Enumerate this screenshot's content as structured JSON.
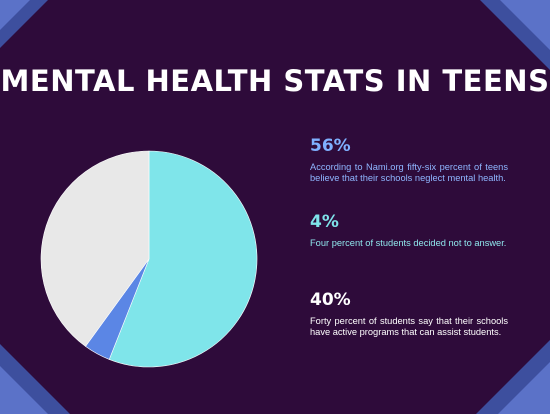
{
  "title": "MENTAL HEALTH STATS IN TEENS",
  "chart_data": {
    "type": "pie",
    "categories": [
      "Schools neglect mental health",
      "Decided not to answer",
      "Schools have active programs"
    ],
    "values": [
      56,
      4,
      40
    ],
    "colors": [
      "#7fe5ea",
      "#5b86e5",
      "#e8e8e8"
    ]
  },
  "stats": [
    {
      "value": "56%",
      "text": "According to Nami.org fifty-six percent of teens believe that their schools neglect mental health."
    },
    {
      "value": "4%",
      "text": "Four percent of students decided not to answer."
    },
    {
      "value": "40%",
      "text": "Forty percent of students say that their schools have active programs that can assist students."
    }
  ],
  "colors": {
    "background": "#2e0b3a",
    "stripe_dark": "#3d4f9e",
    "stripe_light": "#5b72c8"
  }
}
